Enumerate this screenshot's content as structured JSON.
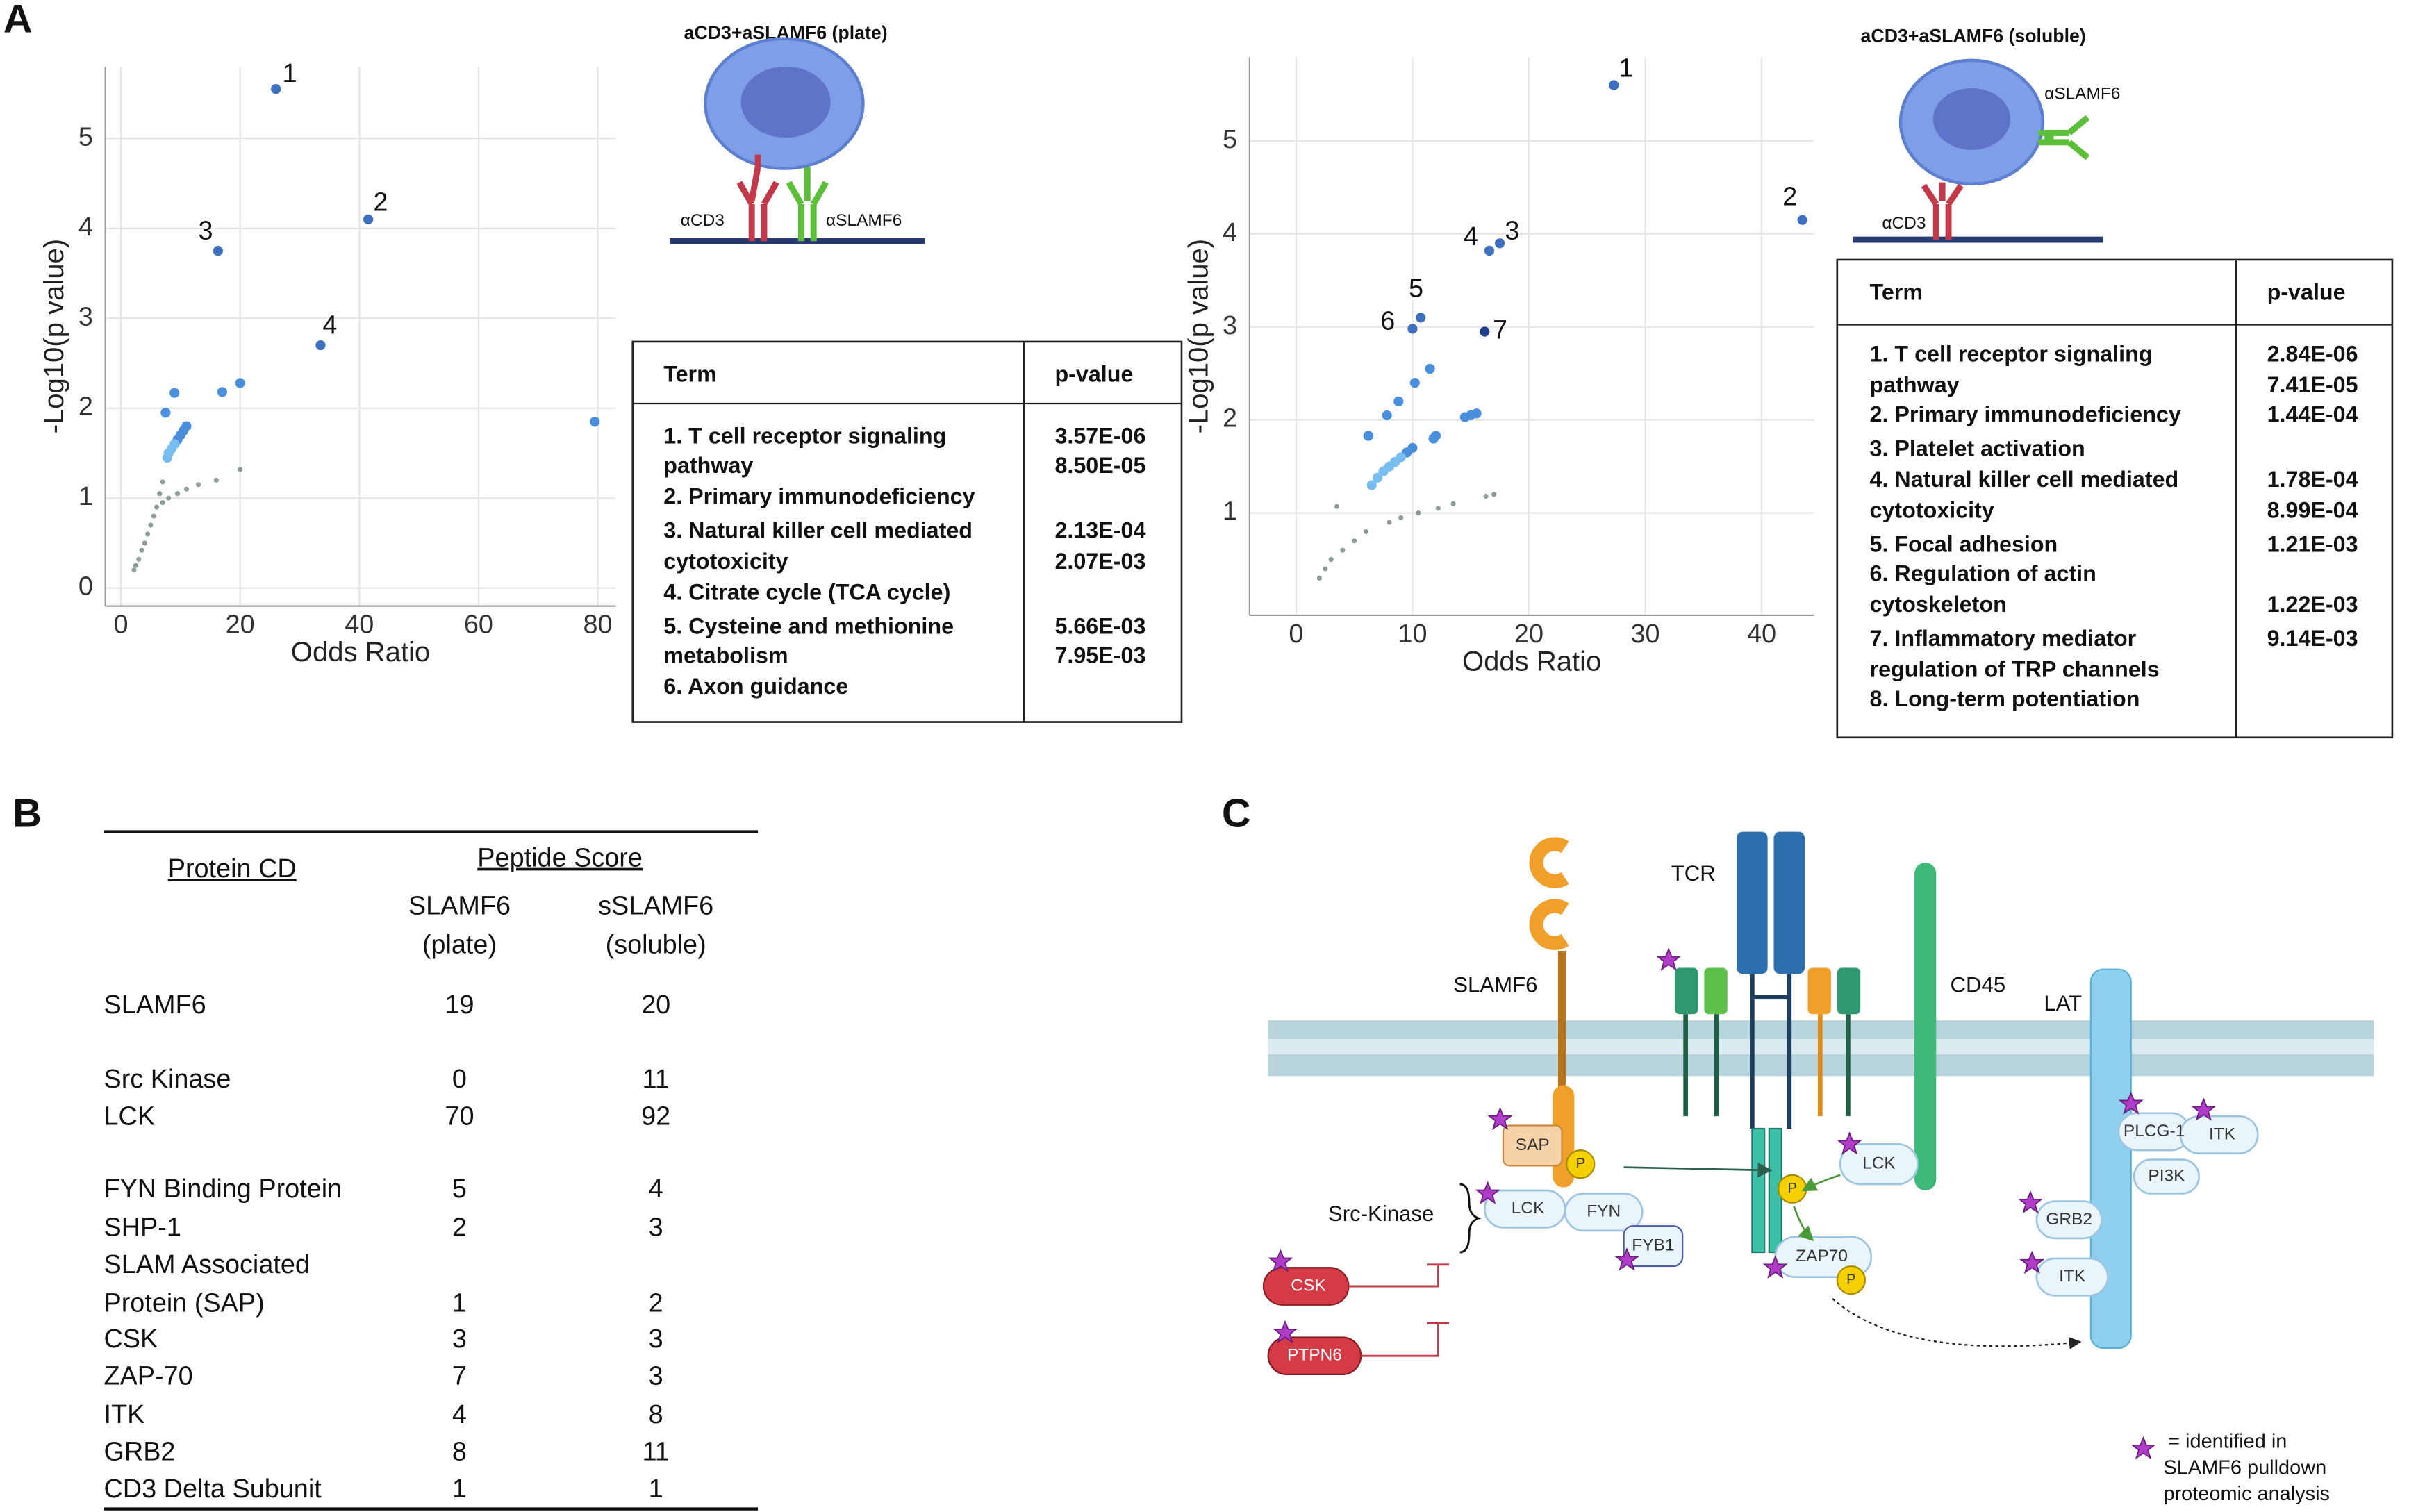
{
  "panel_labels": {
    "a": "A",
    "b": "B",
    "c": "C"
  },
  "chart_data": [
    {
      "type": "scatter",
      "title": "aCD3+aSLAMF6 (plate)",
      "x_label": "Odds Ratio",
      "y_label": "-Log10(p value)",
      "xlim": [
        -2.6,
        83
      ],
      "ylim": [
        -0.2,
        5.8
      ],
      "xticks": [
        0,
        20,
        40,
        60,
        80
      ],
      "yticks": [
        0,
        1,
        2,
        3,
        4,
        5
      ],
      "grid": true,
      "series": [
        {
          "color": "#3f6fbf",
          "marker": "large",
          "x": [
            26,
            41.5,
            16.3,
            33.5
          ],
          "values": [
            5.55,
            4.1,
            3.75,
            2.7
          ],
          "point_labels": [
            "1",
            "2",
            "3",
            "4"
          ]
        },
        {
          "color": "#4a8fdc",
          "marker": "large",
          "x": [
            20,
            17,
            9,
            7.5,
            79.5,
            11,
            10.5,
            10,
            9.5
          ],
          "values": [
            2.28,
            2.18,
            2.17,
            1.95,
            1.85,
            1.8,
            1.75,
            1.7,
            1.65
          ]
        },
        {
          "color": "#78bdf0",
          "marker": "large",
          "x": [
            9,
            8.5,
            8,
            7.8
          ],
          "values": [
            1.6,
            1.55,
            1.5,
            1.45
          ]
        },
        {
          "color": "#8c9c98",
          "marker": "small",
          "x": [
            20,
            16,
            7,
            6.5,
            13,
            11,
            9.5,
            8,
            7,
            6,
            5.5,
            5,
            4.5,
            4,
            3.5,
            3,
            2.5,
            2.2
          ],
          "values": [
            1.32,
            1.2,
            1.18,
            1.05,
            1.15,
            1.1,
            1.05,
            1,
            0.95,
            0.9,
            0.8,
            0.7,
            0.6,
            0.5,
            0.42,
            0.32,
            0.25,
            0.2
          ]
        }
      ]
    },
    {
      "type": "scatter",
      "title": "aCD3+aSLAMF6 (soluble)",
      "x_label": "Odds Ratio",
      "y_label": "-Log10(p value)",
      "xlim": [
        -4,
        44.5
      ],
      "ylim": [
        -0.1,
        5.9
      ],
      "xticks": [
        0,
        10,
        20,
        30,
        40
      ],
      "yticks": [
        1,
        2,
        3,
        4,
        5
      ],
      "grid": true,
      "series": [
        {
          "color": "#3f6fbf",
          "marker": "large",
          "x": [
            27.3,
            43.5,
            17.5,
            16.6,
            10.7,
            10
          ],
          "values": [
            5.6,
            4.15,
            3.9,
            3.82,
            3.1,
            2.98
          ],
          "point_labels": [
            "1",
            "2",
            "3",
            "4",
            "5",
            "6"
          ]
        },
        {
          "color": "#1f3f8f",
          "marker": "large",
          "x": [
            16.2
          ],
          "values": [
            2.95
          ],
          "point_labels": [
            "7"
          ]
        },
        {
          "color": "#4a8fdc",
          "marker": "large",
          "x": [
            11.5,
            10.2,
            8.8,
            7.8,
            6.2,
            15.5,
            15,
            14.5,
            12,
            11.8,
            10,
            9.5
          ],
          "values": [
            2.55,
            2.4,
            2.2,
            2.05,
            1.83,
            2.07,
            2.05,
            2.03,
            1.83,
            1.8,
            1.7,
            1.65
          ]
        },
        {
          "color": "#78bdf0",
          "marker": "large",
          "x": [
            9,
            8.5,
            8,
            7.5,
            7,
            6.5
          ],
          "values": [
            1.6,
            1.55,
            1.5,
            1.45,
            1.38,
            1.3
          ]
        },
        {
          "color": "#8c9c98",
          "marker": "small",
          "x": [
            17,
            16.3,
            13.5,
            12.2,
            10.5,
            9,
            8,
            6,
            5,
            4,
            3,
            2.5,
            2,
            3.5
          ],
          "values": [
            1.2,
            1.18,
            1.1,
            1.05,
            1,
            0.95,
            0.9,
            0.8,
            0.7,
            0.6,
            0.5,
            0.4,
            0.3,
            1.07
          ]
        }
      ]
    }
  ],
  "insets": [
    {
      "labels": [
        "αCD3",
        "αSLAMF6"
      ]
    },
    {
      "labels": [
        "αSLAMF6",
        "αCD3"
      ]
    }
  ],
  "tables_a": [
    {
      "header": [
        "Term",
        "p-value"
      ],
      "term_lines": [
        "1. T cell receptor signaling",
        "pathway",
        "2. Primary immunodeficiency",
        "3. Natural killer cell mediated",
        "cytotoxicity",
        "4. Citrate cycle (TCA cycle)",
        "5. Cysteine and methionine",
        "metabolism",
        "6. Axon guidance"
      ],
      "p_value_lines": [
        "3.57E-06",
        "8.50E-05",
        "2.13E-04",
        "2.07E-03",
        "5.66E-03",
        "7.95E-03"
      ]
    },
    {
      "header": [
        "Term",
        "p-value"
      ],
      "term_lines": [
        "1. T cell receptor signaling",
        "pathway",
        "2. Primary immunodeficiency",
        "3. Platelet activation",
        "4. Natural killer cell mediated",
        "cytotoxicity",
        "5. Focal adhesion",
        "6. Regulation of actin",
        "cytoskeleton",
        "7. Inflammatory mediator",
        "regulation of TRP channels",
        "8. Long-term potentiation"
      ],
      "p_value_lines": [
        "2.84E-06",
        "7.41E-05",
        "1.44E-04",
        "1.78E-04",
        "8.99E-04",
        "1.21E-03",
        "1.22E-03",
        "9.14E-03"
      ]
    }
  ],
  "table_b": {
    "header": {
      "protein": "Protein CD",
      "score": "Peptide Score",
      "plate": [
        "SLAMF6",
        "(plate)"
      ],
      "soluble": [
        "sSLAMF6",
        "(soluble)"
      ]
    },
    "rows": [
      {
        "protein": [
          "SLAMF6"
        ],
        "plate": 19,
        "soluble": 20
      },
      {
        "protein": [
          "Src Kinase"
        ],
        "plate": 0,
        "soluble": 11
      },
      {
        "protein": [
          "LCK"
        ],
        "plate": 70,
        "soluble": 92
      },
      {
        "protein": [
          "FYN Binding Protein"
        ],
        "plate": 5,
        "soluble": 4
      },
      {
        "protein": [
          "SHP-1"
        ],
        "plate": 2,
        "soluble": 3
      },
      {
        "protein": [
          "SLAM Associated",
          "Protein (SAP)"
        ],
        "plate": 1,
        "soluble": 2
      },
      {
        "protein": [
          "CSK"
        ],
        "plate": 3,
        "soluble": 3
      },
      {
        "protein": [
          "ZAP-70"
        ],
        "plate": 7,
        "soluble": 3
      },
      {
        "protein": [
          "ITK"
        ],
        "plate": 4,
        "soluble": 8
      },
      {
        "protein": [
          "GRB2"
        ],
        "plate": 8,
        "soluble": 11
      },
      {
        "protein": [
          "CD3 Delta Subunit"
        ],
        "plate": 1,
        "soluble": 1
      }
    ]
  },
  "diagram": {
    "tcr": "TCR",
    "slamf6": "SLAMF6",
    "cd45": "CD45",
    "lat": "LAT",
    "src_kinase": "Src-Kinase",
    "sap": "SAP",
    "p1": "P",
    "p2": "P",
    "p3": "P",
    "lck_a": "LCK",
    "fyn": "FYN",
    "fyb1": "FYB1",
    "csk": "CSK",
    "ptpn6": "PTPN6",
    "lck_b": "LCK",
    "zap70": "ZAP70",
    "plcg1": "PLCG-1",
    "itk_a": "ITK",
    "pi3k": "PI3K",
    "grb2": "GRB2",
    "itk_b": "ITK",
    "legend": [
      "= identified in",
      "SLAMF6 pulldown",
      "proteomic analysis"
    ]
  }
}
